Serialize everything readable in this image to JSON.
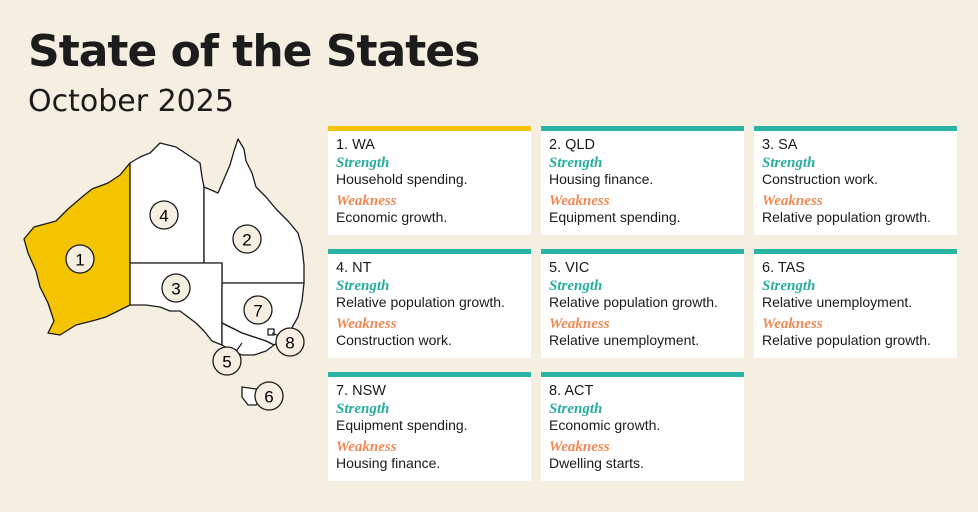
{
  "title": "State of the States",
  "subtitle": "October 2025",
  "colors": {
    "leader": "#f5c400",
    "accent": "#2bb3a5",
    "strength": "#27ad9f",
    "weakness": "#ef8a54",
    "background": "#f5efe2"
  },
  "map": {
    "labels": [
      "1",
      "2",
      "3",
      "4",
      "5",
      "6",
      "7",
      "8"
    ],
    "highlighted": "1"
  },
  "cards": [
    {
      "heading": "1. WA",
      "strength_label": "Strength",
      "strength": "Household spending.",
      "weakness_label": "Weakness",
      "weakness": "Economic growth."
    },
    {
      "heading": "2. QLD",
      "strength_label": "Strength",
      "strength": "Housing finance.",
      "weakness_label": "Weakness",
      "weakness": "Equipment spending."
    },
    {
      "heading": "3. SA",
      "strength_label": "Strength",
      "strength": "Construction work.",
      "weakness_label": "Weakness",
      "weakness": "Relative population growth."
    },
    {
      "heading": "4. NT",
      "strength_label": "Strength",
      "strength": "Relative population growth.",
      "weakness_label": "Weakness",
      "weakness": "Construction work."
    },
    {
      "heading": "5. VIC",
      "strength_label": "Strength",
      "strength": "Relative population growth.",
      "weakness_label": "Weakness",
      "weakness": "Relative unemployment."
    },
    {
      "heading": "6. TAS",
      "strength_label": "Strength",
      "strength": "Relative unemployment.",
      "weakness_label": "Weakness",
      "weakness": "Relative population growth."
    },
    {
      "heading": "7. NSW",
      "strength_label": "Strength",
      "strength": "Equipment spending.",
      "weakness_label": "Weakness",
      "weakness": "Housing finance."
    },
    {
      "heading": "8. ACT",
      "strength_label": "Strength",
      "strength": "Economic growth.",
      "weakness_label": "Weakness",
      "weakness": "Dwelling starts."
    }
  ]
}
